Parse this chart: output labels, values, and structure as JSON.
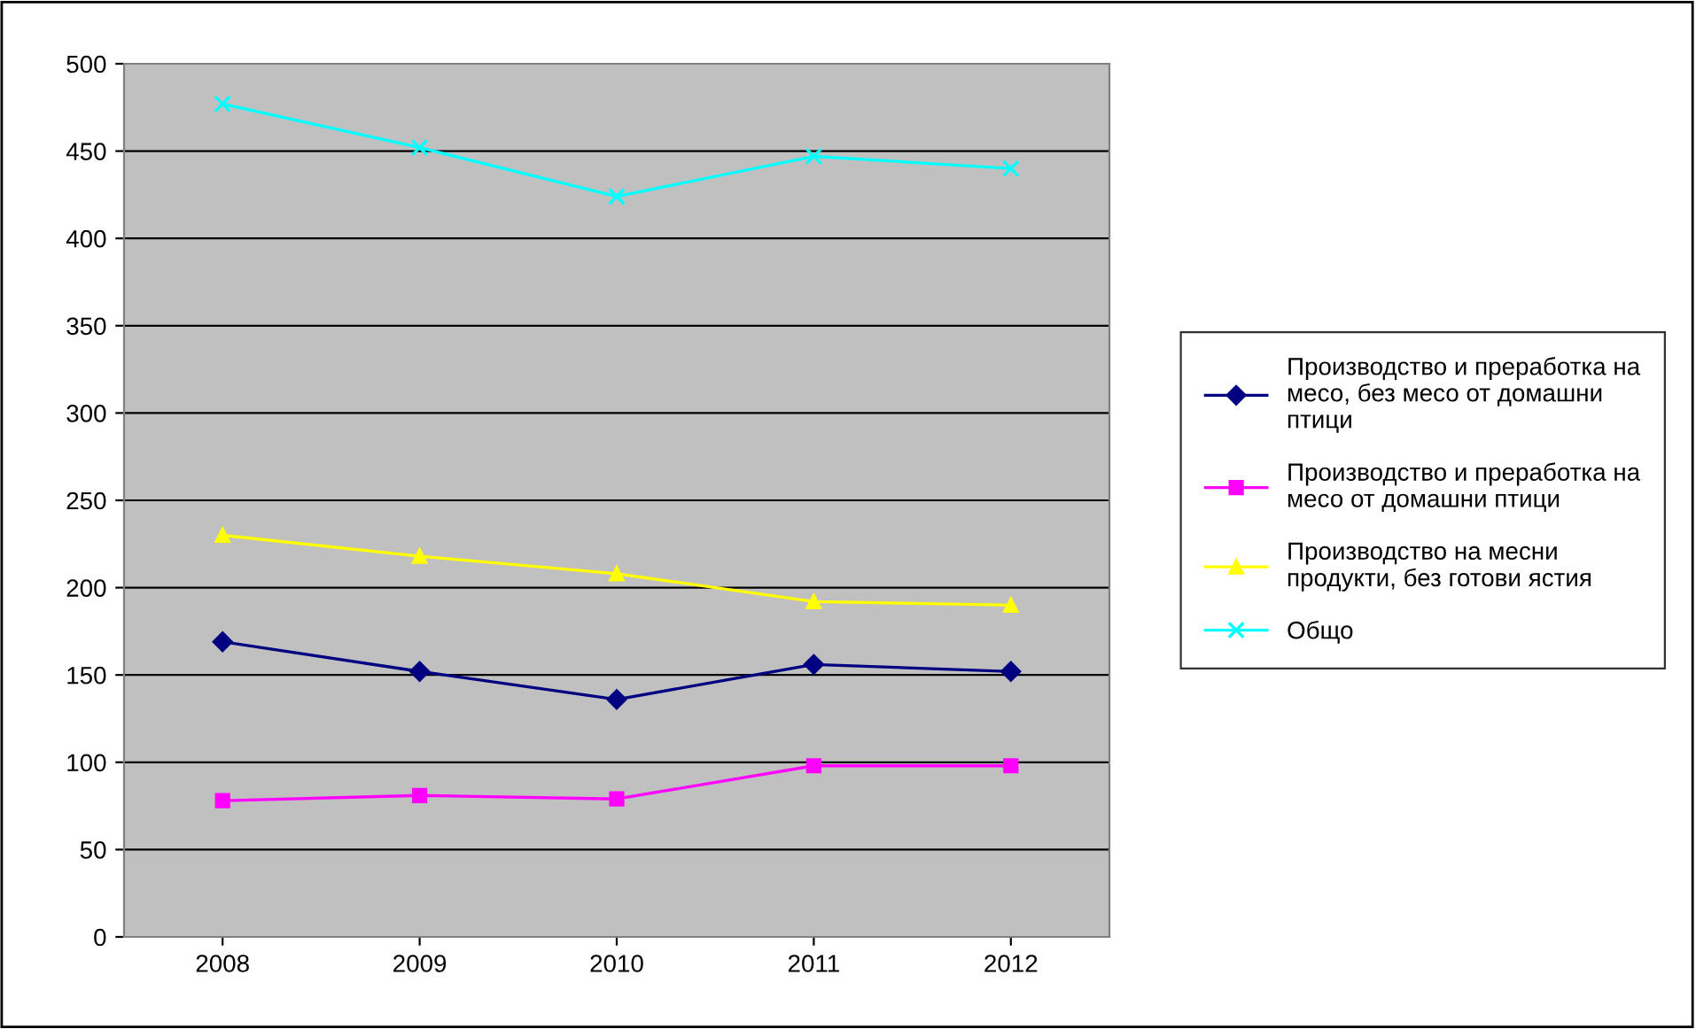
{
  "chart_data": {
    "type": "line",
    "categories": [
      "2008",
      "2009",
      "2010",
      "2011",
      "2012"
    ],
    "series": [
      {
        "name": "Производство и преработка на месо, без месо от домашни птици",
        "color": "#000080",
        "marker": "diamond",
        "values": [
          169,
          152,
          136,
          156,
          152
        ]
      },
      {
        "name": "Производство и преработка на месо от домашни птици",
        "color": "#ff00ff",
        "marker": "square",
        "values": [
          78,
          81,
          79,
          98,
          98
        ]
      },
      {
        "name": "Производство на месни продукти, без готови ястия",
        "color": "#ffff00",
        "marker": "triangle",
        "values": [
          230,
          218,
          208,
          192,
          190
        ]
      },
      {
        "name": "Общо",
        "color": "#00ffff",
        "marker": "cross",
        "values": [
          477,
          452,
          424,
          447,
          440
        ]
      }
    ],
    "ylim": [
      0,
      500
    ],
    "yticks": [
      0,
      50,
      100,
      150,
      200,
      250,
      300,
      350,
      400,
      450,
      500
    ],
    "grid": "y",
    "legend": "right",
    "line_style": "solid"
  }
}
